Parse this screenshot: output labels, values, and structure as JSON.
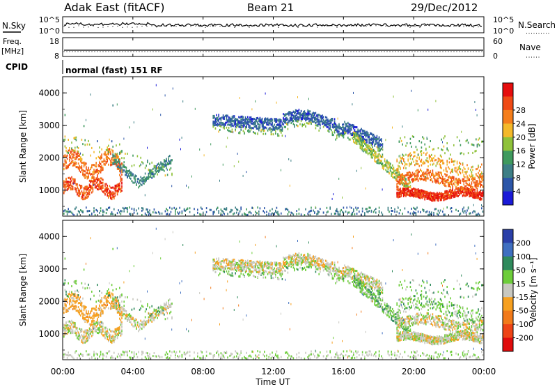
{
  "header": {
    "radar": "Adak East (fitACF)",
    "beam": "Beam 21",
    "date": "29/Dec/2012"
  },
  "noise_panel": {
    "left_label": "N.Sky",
    "right_label": "N.Search",
    "left_ticks": [
      "10^5",
      "10^0"
    ],
    "right_ticks": [
      "10^5",
      "10^0"
    ]
  },
  "freq_panel": {
    "left_label_1": "Freq.",
    "left_label_2": "[MHz]",
    "right_label": "Nave",
    "left_ticks": [
      "18",
      "8"
    ],
    "right_ticks": [
      "60",
      "0"
    ]
  },
  "cpid": {
    "label": "CPID",
    "value": "normal (fast) 151 RF"
  },
  "chart_data": [
    {
      "type": "heatmap",
      "name": "power",
      "ylabel": "Slant Range [km]",
      "y_ticks": [
        "1000",
        "2000",
        "3000",
        "4000"
      ],
      "ylim": [
        200,
        4500
      ],
      "colorbar": {
        "label": "Power [dB]",
        "ticks": [
          "4",
          "8",
          "12",
          "16",
          "20",
          "24",
          "28"
        ],
        "colors": [
          "#1a1ad8",
          "#2c56a8",
          "#3d7f86",
          "#3f9a5e",
          "#8fc23a",
          "#f4b92a",
          "#f57e1c",
          "#ef4a15",
          "#e60d0d"
        ]
      }
    },
    {
      "type": "heatmap",
      "name": "velocity",
      "ylabel": "Slant Range [km]",
      "y_ticks": [
        "1000",
        "2000",
        "3000",
        "4000"
      ],
      "ylim": [
        200,
        4500
      ],
      "colorbar": {
        "label": "Velocity [m s⁻¹]",
        "ticks": [
          "200",
          "100",
          "50",
          "15",
          "-15",
          "-50",
          "-100",
          "-200"
        ],
        "colors": [
          "#2a3fa8",
          "#3f6fc0",
          "#2f8a5c",
          "#6dcd3a",
          "#c8c8c0",
          "#f6a020",
          "#f27a1a",
          "#ee4416",
          "#e00c0c"
        ]
      }
    }
  ],
  "time_axis": {
    "label": "Time UT",
    "ticks": [
      "00:00",
      "04:00",
      "08:00",
      "12:00",
      "16:00",
      "20:00",
      "00:00"
    ]
  }
}
